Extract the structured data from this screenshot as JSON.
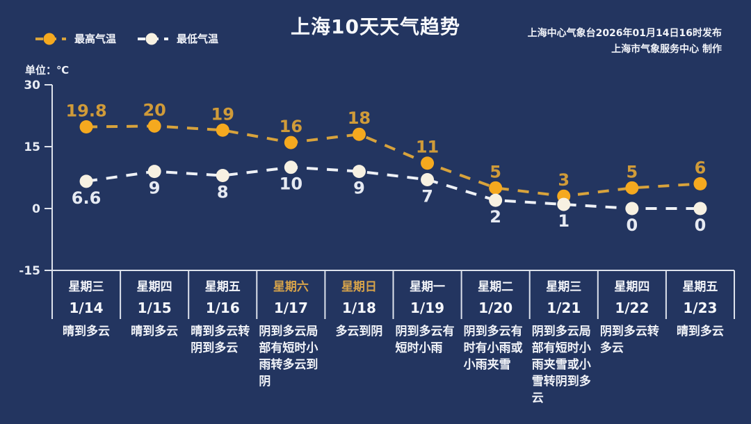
{
  "title": "上海10天天气趋势",
  "publisher": {
    "line1": "上海中心气象台2026年01月14日16时发布",
    "line2": "上海市气象服务中心 制作"
  },
  "legend": {
    "high_label": "最高气温",
    "low_label": "最低气温"
  },
  "unit_label": "单位：℃",
  "colors": {
    "background": "#233560",
    "axis": "#dde2ec",
    "tick_text": "#e8ecf4",
    "high_line": "#d8a33c",
    "high_marker": "#f5a91f",
    "high_label": "#d09b39",
    "low_line": "#eef1f6",
    "low_marker": "#f7f1e2",
    "low_label": "#e6eaf2",
    "weekend_text": "#d7a34a"
  },
  "chart_data": {
    "type": "line",
    "title": "上海10天天气趋势",
    "unit": "℃",
    "ylim": [
      -15,
      30
    ],
    "y_ticks": [
      30,
      15,
      0,
      -15
    ],
    "grid": false,
    "legend_position": "top-left",
    "line_style": "dashed",
    "categories": [
      "1/14",
      "1/15",
      "1/16",
      "1/17",
      "1/18",
      "1/19",
      "1/20",
      "1/21",
      "1/22",
      "1/23"
    ],
    "series": [
      {
        "name": "最高气温",
        "values": [
          19.8,
          20,
          19,
          16,
          18,
          11,
          5,
          3,
          5,
          6
        ],
        "line_color": "#d8a33c",
        "marker_color": "#f5a91f",
        "label_color": "#d09b39"
      },
      {
        "name": "最低气温",
        "values": [
          6.6,
          9,
          8,
          10,
          9,
          7,
          2,
          1,
          0,
          0
        ],
        "line_color": "#eef1f6",
        "marker_color": "#f7f1e2",
        "label_color": "#e6eaf2"
      }
    ]
  },
  "days": [
    {
      "weekday": "星期三",
      "date": "1/14",
      "weather": "晴到多云",
      "weekend": false
    },
    {
      "weekday": "星期四",
      "date": "1/15",
      "weather": "晴到多云",
      "weekend": false
    },
    {
      "weekday": "星期五",
      "date": "1/16",
      "weather": "晴到多云转阴到多云",
      "weekend": false
    },
    {
      "weekday": "星期六",
      "date": "1/17",
      "weather": "阴到多云局部有短时小雨转多云到阴",
      "weekend": true
    },
    {
      "weekday": "星期日",
      "date": "1/18",
      "weather": "多云到阴",
      "weekend": true
    },
    {
      "weekday": "星期一",
      "date": "1/19",
      "weather": "阴到多云有短时小雨",
      "weekend": false
    },
    {
      "weekday": "星期二",
      "date": "1/20",
      "weather": "阴到多云有时有小雨或小雨夹雪",
      "weekend": false
    },
    {
      "weekday": "星期三",
      "date": "1/21",
      "weather": "阴到多云局部有短时小雨夹雪或小雪转阴到多云",
      "weekend": false
    },
    {
      "weekday": "星期四",
      "date": "1/22",
      "weather": "阴到多云转多云",
      "weekend": false
    },
    {
      "weekday": "星期五",
      "date": "1/23",
      "weather": "晴到多云",
      "weekend": false
    }
  ]
}
